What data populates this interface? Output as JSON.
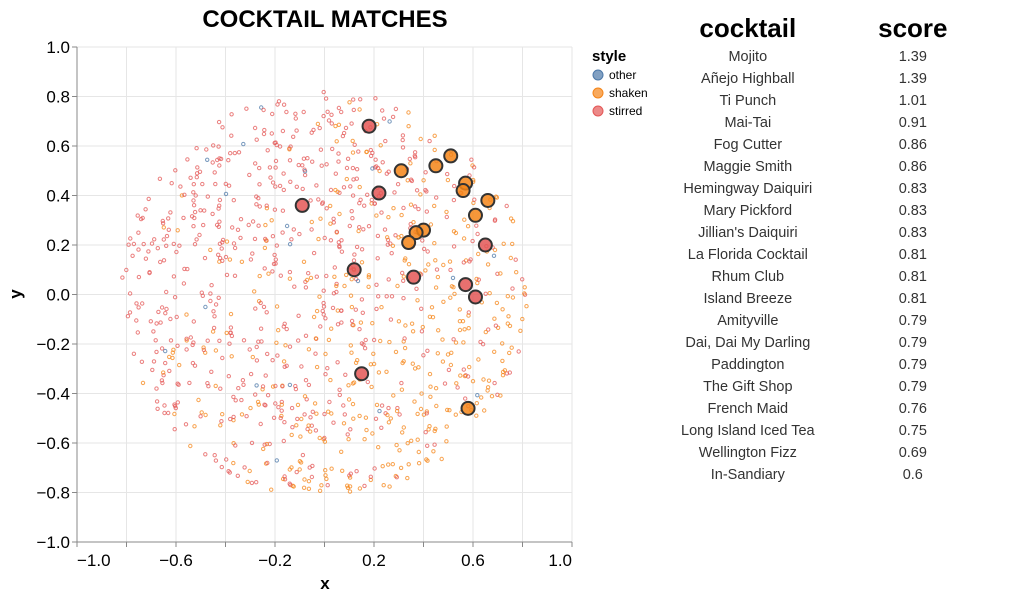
{
  "chart_data": {
    "type": "scatter",
    "title": "COCKTAIL MATCHES",
    "xlabel": "x",
    "ylabel": "y",
    "xlim": [
      -1.0,
      1.0
    ],
    "ylim": [
      -1.0,
      1.0
    ],
    "x_ticks": [
      "−1.0",
      "−0.6",
      "−0.2",
      "0.2",
      "0.6",
      "1.0"
    ],
    "y_ticks": [
      "1.0",
      "0.8",
      "0.6",
      "0.4",
      "0.2",
      "0.0",
      "−0.2",
      "−0.4",
      "−0.6",
      "−0.8",
      "−1.0"
    ],
    "grid": true,
    "legend": {
      "title": "style",
      "placement": "right",
      "entries": [
        {
          "label": "other",
          "color": "#4c78a8"
        },
        {
          "label": "shaken",
          "color": "#f58518"
        },
        {
          "label": "stirred",
          "color": "#e45756"
        }
      ]
    },
    "background_points": "approximately 1000 small faint points filling a disk of radius ~0.82 centered at (0,0); mostly stirred (red) on the left/top, shaken (orange) concentrated on the right and bottom, a few other (blue)",
    "highlighted_points": [
      {
        "x": 0.18,
        "y": 0.68,
        "style": "stirred"
      },
      {
        "x": 0.51,
        "y": 0.56,
        "style": "shaken"
      },
      {
        "x": 0.45,
        "y": 0.52,
        "style": "shaken"
      },
      {
        "x": 0.31,
        "y": 0.5,
        "style": "shaken"
      },
      {
        "x": 0.57,
        "y": 0.45,
        "style": "shaken"
      },
      {
        "x": 0.56,
        "y": 0.42,
        "style": "shaken"
      },
      {
        "x": 0.22,
        "y": 0.41,
        "style": "stirred"
      },
      {
        "x": 0.66,
        "y": 0.38,
        "style": "shaken"
      },
      {
        "x": -0.09,
        "y": 0.36,
        "style": "stirred"
      },
      {
        "x": 0.61,
        "y": 0.32,
        "style": "shaken"
      },
      {
        "x": 0.4,
        "y": 0.26,
        "style": "shaken"
      },
      {
        "x": 0.37,
        "y": 0.25,
        "style": "shaken"
      },
      {
        "x": 0.34,
        "y": 0.21,
        "style": "shaken"
      },
      {
        "x": 0.65,
        "y": 0.2,
        "style": "stirred"
      },
      {
        "x": 0.12,
        "y": 0.1,
        "style": "stirred"
      },
      {
        "x": 0.36,
        "y": 0.07,
        "style": "stirred"
      },
      {
        "x": 0.57,
        "y": 0.04,
        "style": "stirred"
      },
      {
        "x": 0.61,
        "y": -0.01,
        "style": "stirred"
      },
      {
        "x": 0.15,
        "y": -0.32,
        "style": "stirred"
      },
      {
        "x": 0.58,
        "y": -0.46,
        "style": "shaken"
      }
    ]
  },
  "table": {
    "headers": [
      "cocktail",
      "score"
    ],
    "rows": [
      [
        "Mojito",
        "1.39"
      ],
      [
        "Añejo Highball",
        "1.39"
      ],
      [
        "Ti Punch",
        "1.01"
      ],
      [
        "Mai-Tai",
        "0.91"
      ],
      [
        "Fog Cutter",
        "0.86"
      ],
      [
        "Maggie Smith",
        "0.86"
      ],
      [
        "Hemingway Daiquiri",
        "0.83"
      ],
      [
        "Mary Pickford",
        "0.83"
      ],
      [
        "Jillian's Daiquiri",
        "0.83"
      ],
      [
        "La Florida Cocktail",
        "0.81"
      ],
      [
        "Rhum Club",
        "0.81"
      ],
      [
        "Island Breeze",
        "0.81"
      ],
      [
        "Amityville",
        "0.79"
      ],
      [
        "Dai, Dai My Darling",
        "0.79"
      ],
      [
        "Paddington",
        "0.79"
      ],
      [
        "The Gift Shop",
        "0.79"
      ],
      [
        "French Maid",
        "0.76"
      ],
      [
        "Long Island Iced Tea",
        "0.75"
      ],
      [
        "Wellington Fizz",
        "0.69"
      ],
      [
        "In-Sandiary",
        "0.6"
      ]
    ]
  }
}
